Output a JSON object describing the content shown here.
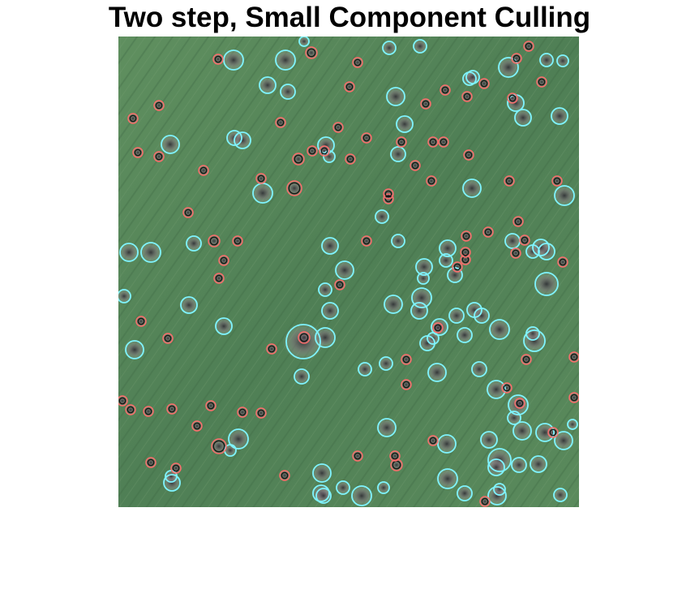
{
  "title": "Two step, Small Component Culling",
  "colors": {
    "field_base": "#4f7f55",
    "field_dark": "#3f6b45",
    "field_light": "#6f9a6d",
    "soil_patch": "#b9b0b6",
    "soil_dark": "#2e2a33",
    "small_marker_outer": "#ff6a6a",
    "small_marker_inner": "#1a1212",
    "large_marker": "#7ff4ff",
    "background": "#ffffff"
  },
  "legend": {
    "small_components": "red-black concentric circles",
    "large_components": "cyan circles"
  }
}
